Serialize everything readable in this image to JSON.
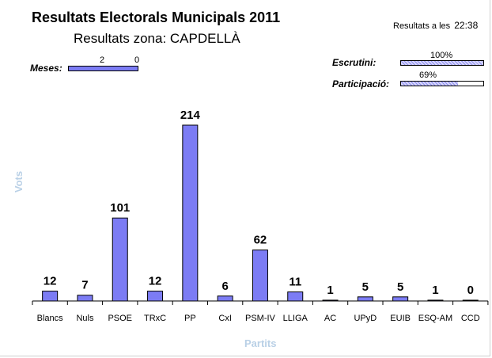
{
  "header": {
    "title": "Resultats Electorals Municipals 2011",
    "subtitle": "Resultats zona: CAPDELLÀ",
    "updated_label": "Resultats a les",
    "updated_time": "22:38"
  },
  "stats": {
    "tables_label": "Meses:",
    "tables_counted": "2",
    "tables_pending": "0",
    "tables_fraction": 1.0,
    "scrutiny_label": "Escrutini:",
    "scrutiny_value": "100%",
    "scrutiny_fraction": 1.0,
    "turnout_label": "Participació:",
    "turnout_value": "69%",
    "turnout_fraction": 0.69
  },
  "colors": {
    "bar": "#7c7cf4",
    "axis_title": "#b9d0e6"
  },
  "chart_data": {
    "type": "bar",
    "title": "",
    "xlabel": "Partits",
    "ylabel": "Vots",
    "grid": false,
    "categories": [
      "Blancs",
      "Nuls",
      "PSOE",
      "TRxC",
      "PP",
      "CxI",
      "PSM-IV",
      "LLIGA",
      "AC",
      "UPyD",
      "EUIB",
      "ESQ-AM",
      "CCD"
    ],
    "values": [
      12,
      7,
      101,
      12,
      214,
      6,
      62,
      11,
      1,
      5,
      5,
      1,
      0
    ],
    "ylim": [
      0,
      214
    ]
  }
}
